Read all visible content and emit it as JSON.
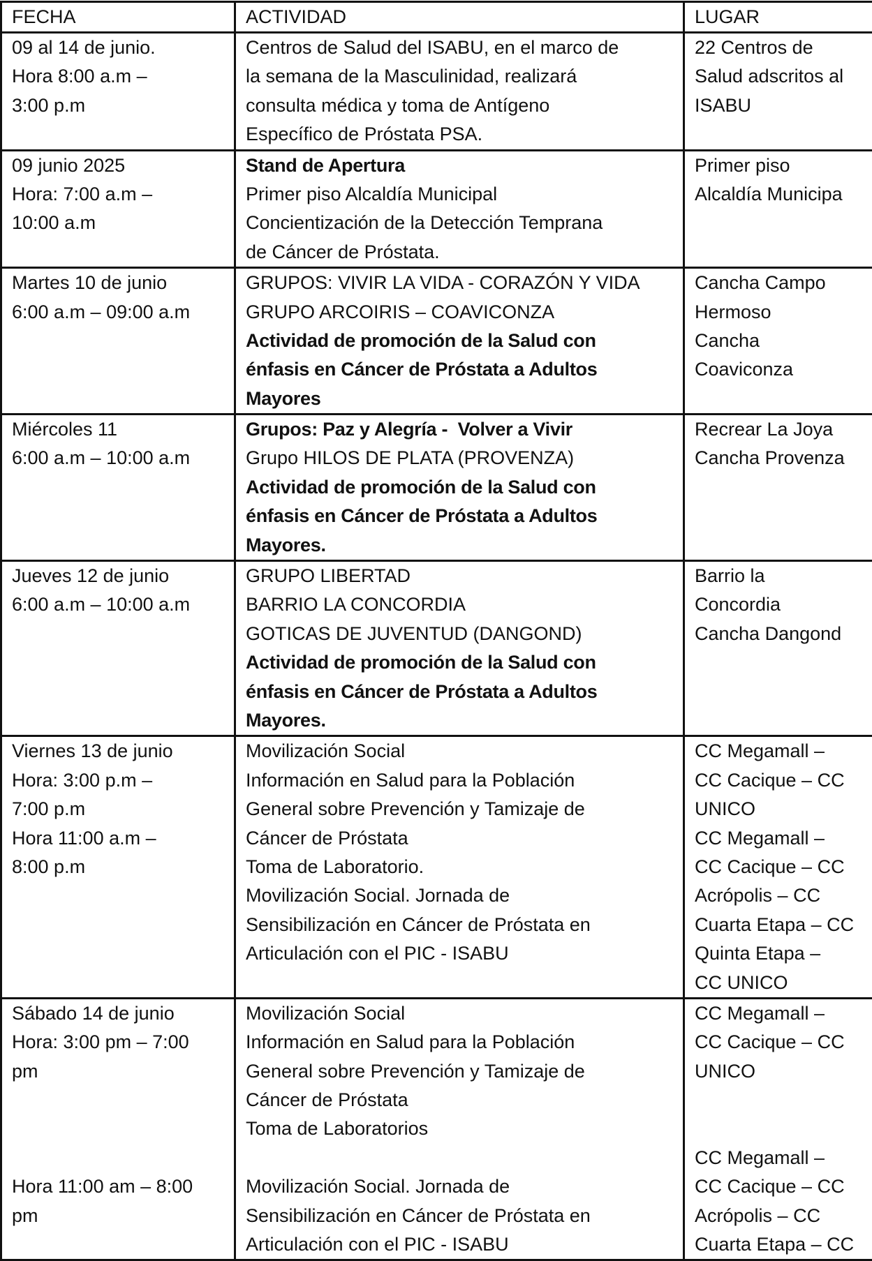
{
  "headers": [
    "FECHA",
    "ACTIVIDAD",
    "LUGAR"
  ],
  "rows": [
    {
      "fecha": [
        {
          "t": "09 al 14 de junio."
        },
        {
          "t": "Hora 8:00 a.m –"
        },
        {
          "t": "3:00 p.m"
        }
      ],
      "actividad": [
        {
          "t": "Centros de Salud del ISABU, en el marco de"
        },
        {
          "t": "la semana de la Masculinidad, realizará"
        },
        {
          "t": "consulta médica y toma de Antígeno"
        },
        {
          "t": "Específico de Próstata PSA."
        }
      ],
      "lugar": [
        {
          "t": "22 Centros de"
        },
        {
          "t": "Salud adscritos al"
        },
        {
          "t": "ISABU"
        }
      ]
    },
    {
      "fecha": [
        {
          "t": "09 junio 2025"
        },
        {
          "t": "Hora: 7:00 a.m –"
        },
        {
          "t": "10:00 a.m"
        }
      ],
      "actividad": [
        {
          "t": "Stand de Apertura",
          "b": true
        },
        {
          "t": "Primer piso Alcaldía Municipal"
        },
        {
          "t": "Concientización de la Detección Temprana"
        },
        {
          "t": "de Cáncer de Próstata."
        }
      ],
      "lugar": [
        {
          "t": "Primer piso"
        },
        {
          "t": "Alcaldía Municipa"
        }
      ]
    },
    {
      "fecha": [
        {
          "t": "Martes 10 de junio"
        },
        {
          "t": "6:00 a.m – 09:00 a.m"
        }
      ],
      "actividad": [
        {
          "t": "GRUPOS: VIVIR LA VIDA - CORAZÓN Y VIDA"
        },
        {
          "t": "GRUPO ARCOIRIS – COAVICONZA"
        },
        {
          "t": "Actividad de promoción de la Salud con",
          "b": true
        },
        {
          "t": "énfasis en Cáncer de Próstata a Adultos",
          "b": true
        },
        {
          "t": "Mayores",
          "b": true
        }
      ],
      "lugar": [
        {
          "t": "Cancha Campo"
        },
        {
          "t": "Hermoso"
        },
        {
          "t": "Cancha"
        },
        {
          "t": "Coaviconza"
        }
      ]
    },
    {
      "fecha": [
        {
          "t": "Miércoles 11"
        },
        {
          "t": "6:00 a.m – 10:00 a.m"
        }
      ],
      "actividad": [
        {
          "t": "Grupos: Paz y Alegría -  Volver a Vivir",
          "b": true
        },
        {
          "t": "Grupo HILOS DE PLATA (PROVENZA)"
        },
        {
          "t": "Actividad de promoción de la Salud con",
          "b": true
        },
        {
          "t": "énfasis en Cáncer de Próstata a Adultos",
          "b": true
        },
        {
          "t": "Mayores.",
          "b": true
        }
      ],
      "lugar": [
        {
          "t": "Recrear La Joya"
        },
        {
          "t": "Cancha Provenza"
        }
      ]
    },
    {
      "fecha": [
        {
          "t": "Jueves 12 de junio"
        },
        {
          "t": "6:00 a.m – 10:00 a.m"
        }
      ],
      "actividad": [
        {
          "t": "GRUPO LIBERTAD"
        },
        {
          "t": "BARRIO LA CONCORDIA"
        },
        {
          "t": "GOTICAS DE JUVENTUD (DANGOND)"
        },
        {
          "t": "Actividad de promoción de la Salud con",
          "b": true
        },
        {
          "t": "énfasis en Cáncer de Próstata a Adultos",
          "b": true
        },
        {
          "t": "Mayores.",
          "b": true
        }
      ],
      "lugar": [
        {
          "t": "Barrio la"
        },
        {
          "t": "Concordia"
        },
        {
          "t": "Cancha Dangond"
        }
      ]
    },
    {
      "fecha": [
        {
          "t": "Viernes 13 de junio"
        },
        {
          "t": "Hora: 3:00 p.m –"
        },
        {
          "t": "7:00 p.m"
        },
        {
          "t": "Hora 11:00 a.m –"
        },
        {
          "t": "8:00 p.m"
        }
      ],
      "actividad": [
        {
          "t": "Movilización Social"
        },
        {
          "t": "Información en Salud para la Población"
        },
        {
          "t": "General sobre Prevención y Tamizaje de"
        },
        {
          "t": "Cáncer de Próstata"
        },
        {
          "t": "Toma de Laboratorio."
        },
        {
          "t": "Movilización Social. Jornada de"
        },
        {
          "t": "Sensibilización en Cáncer de Próstata en"
        },
        {
          "t": "Articulación con el PIC - ISABU"
        }
      ],
      "lugar": [
        {
          "t": "CC Megamall –"
        },
        {
          "t": "CC Cacique – CC"
        },
        {
          "t": "UNICO"
        },
        {
          "t": "CC Megamall –"
        },
        {
          "t": "CC Cacique – CC"
        },
        {
          "t": "Acrópolis – CC"
        },
        {
          "t": "Cuarta Etapa – CC"
        },
        {
          "t": "Quinta Etapa –"
        },
        {
          "t": "CC UNICO"
        }
      ]
    },
    {
      "fecha": [
        {
          "t": "Sábado 14 de junio"
        },
        {
          "t": "Hora: 3:00 pm – 7:00"
        },
        {
          "t": "pm"
        },
        {
          "t": ""
        },
        {
          "t": ""
        },
        {
          "t": ""
        },
        {
          "t": "Hora 11:00 am – 8:00"
        },
        {
          "t": "pm"
        }
      ],
      "actividad": [
        {
          "t": "Movilización Social"
        },
        {
          "t": "Información en Salud para la Población"
        },
        {
          "t": "General sobre Prevención y Tamizaje de"
        },
        {
          "t": "Cáncer de Próstata"
        },
        {
          "t": "Toma de Laboratorios"
        },
        {
          "t": ""
        },
        {
          "t": "Movilización Social. Jornada de"
        },
        {
          "t": "Sensibilización en Cáncer de Próstata en"
        },
        {
          "t": "Articulación con el PIC - ISABU"
        }
      ],
      "lugar": [
        {
          "t": "CC Megamall –"
        },
        {
          "t": "CC Cacique – CC"
        },
        {
          "t": "UNICO"
        },
        {
          "t": ""
        },
        {
          "t": ""
        },
        {
          "t": "CC Megamall –"
        },
        {
          "t": "CC Cacique – CC"
        },
        {
          "t": "Acrópolis – CC"
        },
        {
          "t": "Cuarta Etapa – CC"
        }
      ]
    }
  ]
}
